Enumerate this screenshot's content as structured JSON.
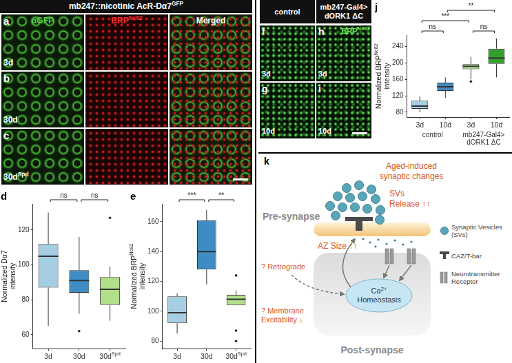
{
  "panels": {
    "left_header": {
      "text": "mb247::nicotinic AcR-Dα7",
      "sup": "GFP"
    },
    "columns": [
      "αGFP",
      {
        "text": "BRP",
        "sup": "Nc82"
      },
      "Merged"
    ],
    "rows": [
      {
        "letter": "a",
        "label": "3d"
      },
      {
        "letter": "b",
        "label": "30d"
      },
      {
        "letter": "c",
        "label": {
          "text": "30d",
          "sup": "Spd"
        }
      }
    ],
    "right_headers": [
      [
        "control"
      ],
      [
        "mb247-Gal4>",
        "dORK1 ΔC"
      ]
    ],
    "right_stain": {
      "text": "BRP",
      "sup": "Nc82"
    },
    "right_rows": [
      {
        "letters": [
          "f",
          "h"
        ],
        "label": "3d"
      },
      {
        "letters": [
          "g",
          "i"
        ],
        "label": "10d"
      }
    ]
  },
  "chart_data": [
    {
      "letter": "d",
      "type": "box",
      "y_label": [
        "Normalized Dα7",
        "intensity"
      ],
      "categories": [
        "3d",
        "30d",
        {
          "text": "30d",
          "sup": "Spd"
        }
      ],
      "boxes": [
        {
          "min": 65,
          "q1": 87,
          "median": 105,
          "q3": 112,
          "max": 130,
          "outliers": []
        },
        {
          "min": 72,
          "q1": 84,
          "median": 91,
          "q3": 97,
          "max": 116,
          "outliers": [
            62
          ]
        },
        {
          "min": 68,
          "q1": 77,
          "median": 86,
          "q3": 93,
          "max": 99,
          "outliers": [
            127
          ]
        }
      ],
      "colors": [
        "#a6cee3",
        "#3d8cc4",
        "#b2df8a"
      ],
      "ylim": [
        52,
        135
      ],
      "yticks": [
        60,
        80,
        100,
        120
      ],
      "grid": false,
      "significance": [
        {
          "from": 0,
          "to": 1,
          "label": "ns"
        },
        {
          "from": 1,
          "to": 2,
          "label": "ns"
        }
      ]
    },
    {
      "letter": "e",
      "type": "box",
      "y_label": [
        {
          "text": "Normalized BRP",
          "sup": "Nc82"
        },
        "intensity"
      ],
      "categories": [
        "3d",
        "30d",
        {
          "text": "30d",
          "sup": "Spd"
        }
      ],
      "boxes": [
        {
          "min": 85,
          "q1": 92,
          "median": 99,
          "q3": 110,
          "max": 112,
          "outliers": []
        },
        {
          "min": 118,
          "q1": 128,
          "median": 140,
          "q3": 161,
          "max": 168,
          "outliers": []
        },
        {
          "min": 104,
          "q1": 104,
          "median": 108,
          "q3": 111,
          "max": 114,
          "outliers": [
            80,
            87,
            124
          ]
        }
      ],
      "colors": [
        "#a6cee3",
        "#3d8cc4",
        "#b2df8a"
      ],
      "ylim": [
        75,
        172
      ],
      "yticks": [
        80,
        100,
        120,
        140,
        160
      ],
      "grid": false,
      "significance": [
        {
          "from": 0,
          "to": 1,
          "label": "***"
        },
        {
          "from": 1,
          "to": 2,
          "label": "**"
        }
      ]
    },
    {
      "letter": "j",
      "type": "box",
      "y_label": [
        {
          "text": "Normalized BRP",
          "sup": "Nc82"
        },
        "intensity"
      ],
      "categories": [
        "3d",
        "10d",
        "3d",
        "10d"
      ],
      "groups": [
        {
          "label": [
            "control"
          ],
          "from": 0,
          "to": 1
        },
        {
          "label": [
            "mb247-Gal4>",
            "dORK1 ΔC"
          ],
          "from": 2,
          "to": 3
        }
      ],
      "boxes": [
        {
          "min": 80,
          "q1": 88,
          "median": 95,
          "q3": 108,
          "max": 118,
          "outliers": []
        },
        {
          "min": 115,
          "q1": 132,
          "median": 142,
          "q3": 152,
          "max": 165,
          "outliers": []
        },
        {
          "min": 160,
          "q1": 185,
          "median": 192,
          "q3": 197,
          "max": 215,
          "outliers": [
            155
          ]
        },
        {
          "min": 165,
          "q1": 198,
          "median": 212,
          "q3": 235,
          "max": 260,
          "outliers": []
        }
      ],
      "colors": [
        "#a6cee3",
        "#3d8cc4",
        "#b2df8a",
        "#33a02c"
      ],
      "ylim": [
        68,
        268
      ],
      "yticks": [
        80,
        120,
        160,
        200,
        240
      ],
      "grid": false,
      "significance": [
        {
          "from": 0,
          "to": 1,
          "label": "ns"
        },
        {
          "from": 2,
          "to": 3,
          "label": "ns"
        },
        {
          "from": 0,
          "to": 2,
          "label": "***"
        },
        {
          "from": 1,
          "to": 3,
          "label": "**"
        }
      ]
    }
  ],
  "diagram": {
    "letter": "k",
    "title": [
      "Aged-induced",
      "synaptic changes"
    ],
    "pre": "Pre-synapse",
    "post": "Post-synapse",
    "svs": [
      "SVs",
      "Release ↑↑"
    ],
    "az": "AZ Size ↑↑",
    "retrograde": "? Retrograde",
    "excitability": [
      "? Membrane",
      "Excitability ↓"
    ],
    "calcium": [
      {
        "text": "Ca",
        "sup": "2+"
      },
      "Homeostasis"
    ],
    "legend": [
      {
        "shape": "vesicle",
        "label": [
          "Synaptic Vesicles",
          "(SVs)"
        ]
      },
      {
        "shape": "tbar",
        "label": [
          "CAZ/T-bar"
        ]
      },
      {
        "shape": "receptor",
        "label": [
          "Neurotransmitter",
          "Receptor"
        ]
      }
    ]
  }
}
